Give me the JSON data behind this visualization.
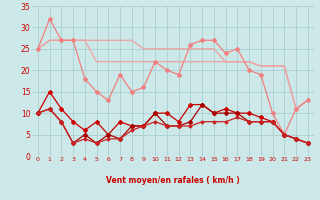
{
  "x": [
    0,
    1,
    2,
    3,
    4,
    5,
    6,
    7,
    8,
    9,
    10,
    11,
    12,
    13,
    14,
    15,
    16,
    17,
    18,
    19,
    20,
    21,
    22,
    23
  ],
  "line_top1": [
    25,
    27,
    27,
    27,
    27,
    27,
    27,
    27,
    27,
    25,
    25,
    25,
    25,
    25,
    25,
    25,
    22,
    22,
    22,
    21,
    21,
    21,
    11,
    13
  ],
  "line_top2": [
    25,
    32,
    27,
    27,
    18,
    15,
    13,
    19,
    15,
    16,
    22,
    20,
    19,
    26,
    27,
    27,
    24,
    25,
    20,
    19,
    10,
    5,
    11,
    13
  ],
  "line_top3": [
    25,
    27,
    27,
    27,
    27,
    22,
    22,
    22,
    22,
    22,
    22,
    22,
    22,
    22,
    22,
    22,
    22,
    22,
    22,
    21,
    21,
    21,
    11,
    13
  ],
  "line_mid1": [
    10,
    15,
    11,
    8,
    6,
    8,
    5,
    8,
    7,
    7,
    10,
    10,
    8,
    12,
    12,
    10,
    11,
    10,
    10,
    9,
    8,
    5,
    4,
    3
  ],
  "line_mid2": [
    10,
    11,
    8,
    3,
    5,
    3,
    5,
    4,
    7,
    7,
    10,
    7,
    7,
    8,
    12,
    10,
    10,
    10,
    8,
    8,
    8,
    5,
    4,
    3
  ],
  "line_mid3": [
    10,
    11,
    8,
    3,
    4,
    3,
    4,
    4,
    6,
    7,
    8,
    7,
    7,
    7,
    8,
    8,
    8,
    9,
    8,
    8,
    8,
    5,
    4,
    3
  ],
  "color_light1": "#f0a0a0",
  "color_light2": "#f08080",
  "color_light3": "#f0a0a0",
  "color_dark1": "#cc0000",
  "color_dark2": "#aa0000",
  "color_dark3": "#cc2222",
  "bg_color": "#cce8e8",
  "grid_color": "#aacece",
  "xlabel": "Vent moyen/en rafales ( km/h )",
  "ylim": [
    0,
    35
  ],
  "xlim": [
    -0.5,
    23.5
  ],
  "yticks": [
    0,
    5,
    10,
    15,
    20,
    25,
    30,
    35
  ],
  "xticks": [
    0,
    1,
    2,
    3,
    4,
    5,
    6,
    7,
    8,
    9,
    10,
    11,
    12,
    13,
    14,
    15,
    16,
    17,
    18,
    19,
    20,
    21,
    22,
    23
  ]
}
